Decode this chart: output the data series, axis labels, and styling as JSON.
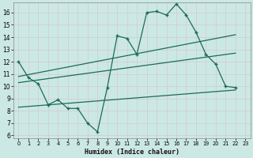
{
  "xlabel": "Humidex (Indice chaleur)",
  "background_color": "#cce8e4",
  "line_color": "#1a6b5a",
  "grid_color": "#b0d8d2",
  "xlim": [
    -0.5,
    23.5
  ],
  "ylim": [
    5.8,
    16.8
  ],
  "yticks": [
    6,
    7,
    8,
    9,
    10,
    11,
    12,
    13,
    14,
    15,
    16
  ],
  "xticks": [
    0,
    1,
    2,
    3,
    4,
    5,
    6,
    7,
    8,
    9,
    10,
    11,
    12,
    13,
    14,
    15,
    16,
    17,
    18,
    19,
    20,
    21,
    22,
    23
  ],
  "series_main": {
    "x": [
      0,
      1,
      2,
      3,
      4,
      5,
      6,
      7,
      8,
      9,
      10,
      11,
      12,
      13,
      14,
      15,
      16,
      17,
      18,
      19,
      20,
      21,
      22
    ],
    "y": [
      12.0,
      10.7,
      10.2,
      8.5,
      8.9,
      8.2,
      8.2,
      7.0,
      6.3,
      9.9,
      14.1,
      13.9,
      12.6,
      16.0,
      16.1,
      15.8,
      16.7,
      15.8,
      14.4,
      12.6,
      11.8,
      10.0,
      9.9
    ]
  },
  "line1": {
    "x": [
      0,
      22
    ],
    "y": [
      10.8,
      14.2
    ]
  },
  "line2": {
    "x": [
      0,
      22
    ],
    "y": [
      10.3,
      12.7
    ]
  },
  "line3": {
    "x": [
      0,
      22
    ],
    "y": [
      8.3,
      9.7
    ]
  }
}
